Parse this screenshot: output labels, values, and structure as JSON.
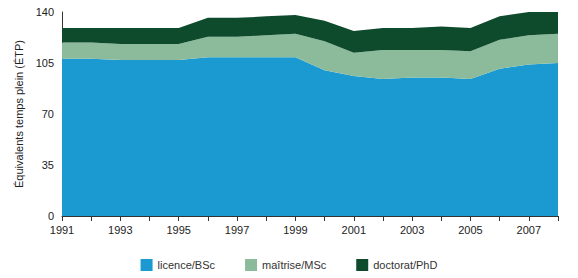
{
  "chart_data": {
    "type": "area",
    "stacked": true,
    "ylabel": "Équivalents temps plein (ÉTP)",
    "categories": [
      "1991",
      null,
      "1993",
      null,
      "1995",
      null,
      "1997",
      null,
      "1999",
      null,
      "2001",
      null,
      "2003",
      null,
      "2005",
      null,
      "2007",
      null
    ],
    "series": [
      {
        "name": "licence/BSc",
        "color": "#1b9ad2",
        "values": [
          108,
          108,
          107,
          107,
          107,
          109,
          109,
          109,
          109,
          100,
          96,
          94,
          95,
          95,
          94,
          101,
          104,
          105
        ]
      },
      {
        "name": "maîtrise/MSc",
        "color": "#8cbb9b",
        "values": [
          11,
          11,
          11,
          11,
          11,
          14,
          14,
          15,
          16,
          20,
          16,
          20,
          19,
          19,
          19,
          20,
          20,
          20
        ]
      },
      {
        "name": "doctorat/PhD",
        "color": "#0e4b2d",
        "values": [
          10,
          10,
          11,
          11,
          11,
          13,
          13,
          13,
          13,
          14,
          15,
          15,
          15,
          16,
          16,
          16,
          16,
          15
        ]
      }
    ],
    "ylim": [
      0,
      140
    ],
    "yticks": [
      0,
      35,
      70,
      105,
      140
    ],
    "grid": false,
    "legend": "bottom"
  }
}
